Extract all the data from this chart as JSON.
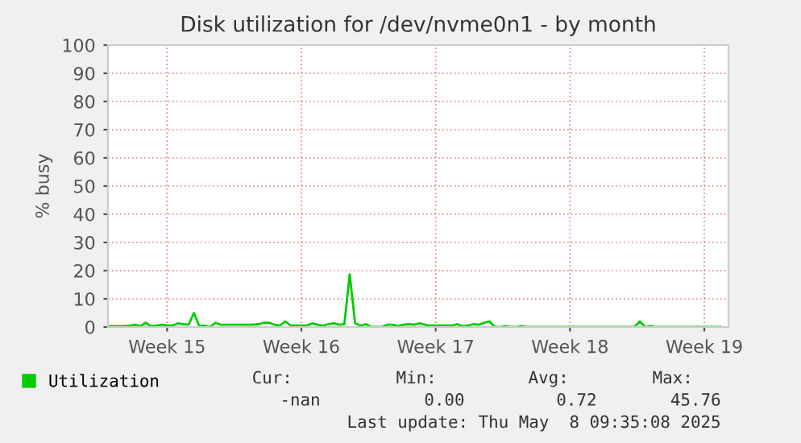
{
  "chart_data": {
    "type": "line",
    "title": "Disk utilization for /dev/nvme0n1 - by month",
    "ylabel": "% busy",
    "categories": [
      null,
      null,
      null,
      null,
      null,
      null,
      null,
      null,
      null,
      null,
      null,
      "Week 15",
      null,
      null,
      null,
      null,
      null,
      null,
      null,
      null,
      null,
      null,
      null,
      null,
      null,
      null,
      null,
      null,
      null,
      null,
      null,
      null,
      null,
      null,
      null,
      null,
      "Week 16",
      null,
      null,
      null,
      null,
      null,
      null,
      null,
      null,
      null,
      null,
      null,
      null,
      null,
      null,
      null,
      null,
      null,
      null,
      null,
      null,
      null,
      null,
      null,
      null,
      "Week 17",
      null,
      null,
      null,
      null,
      null,
      null,
      null,
      null,
      null,
      null,
      null,
      null,
      null,
      null,
      null,
      null,
      null,
      null,
      null,
      null,
      null,
      null,
      null,
      null,
      "Week 18",
      null,
      null,
      null,
      null,
      null,
      null,
      null,
      null,
      null,
      null,
      null,
      null,
      null,
      null,
      null,
      null,
      null,
      null,
      null,
      null,
      null,
      null,
      null,
      null,
      "Week 19",
      null,
      null,
      null
    ],
    "series": [
      {
        "name": "Utilization",
        "color": "#00cc00",
        "values": [
          0.3,
          0.3,
          0.3,
          0.3,
          0.5,
          0.8,
          0.3,
          1.5,
          0.3,
          0.5,
          0.8,
          0.6,
          0.5,
          1.3,
          1.0,
          0.8,
          5,
          0.3,
          0.5,
          0,
          1.5,
          0.8,
          0.8,
          0.8,
          0.8,
          0.8,
          0.8,
          0.8,
          1.0,
          1.5,
          1.5,
          0.8,
          0.5,
          2.0,
          0.5,
          0.5,
          0.5,
          0.5,
          1.3,
          0.8,
          0.5,
          1.0,
          1.3,
          0.8,
          1.0,
          18.7,
          1.3,
          0.5,
          1.0,
          0,
          0,
          0,
          0.8,
          0.8,
          0.3,
          0.8,
          1.0,
          0.8,
          1.3,
          0.8,
          0.5,
          0.5,
          0.5,
          0.5,
          0.5,
          1.0,
          0.3,
          0.5,
          1.0,
          0.8,
          1.5,
          2.0,
          0,
          0,
          0.3,
          0,
          0,
          0.3,
          0,
          0,
          0,
          0,
          0,
          0,
          0,
          0,
          0,
          0,
          0,
          0,
          0,
          0,
          0,
          0,
          0,
          0,
          0,
          0,
          0,
          2.0,
          0,
          0.3,
          0,
          0,
          0,
          0,
          0,
          0,
          0,
          0,
          0,
          0,
          0,
          0,
          0
        ]
      }
    ],
    "ylim": [
      0,
      100
    ],
    "yticks": [
      0,
      10,
      20,
      30,
      40,
      50,
      60,
      70,
      80,
      90,
      100
    ],
    "grid": true,
    "legend": "bottom left",
    "line_style": "solid",
    "marker": "none",
    "annotations": [
      "Cur:",
      "Min:",
      "Avg:",
      "Max:",
      "-nan",
      "0.00",
      "0.72",
      "45.76",
      "Last update: Thu May  8 09:35:08 2025"
    ]
  }
}
